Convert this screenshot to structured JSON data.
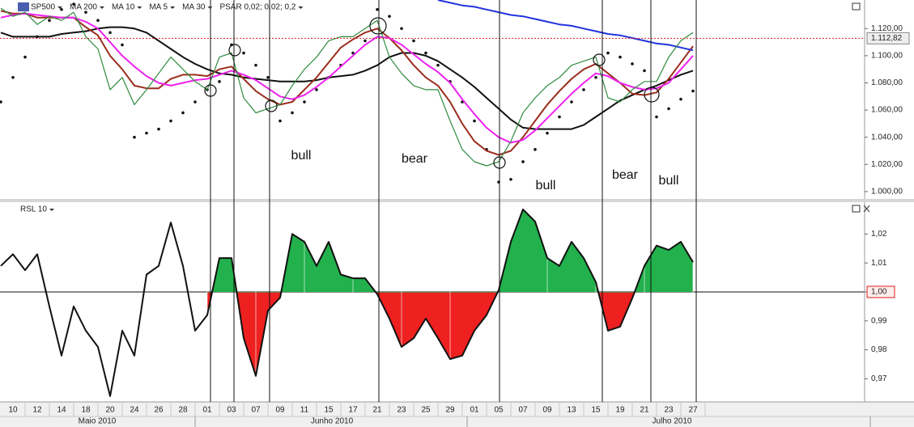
{
  "chart_data": [
    {
      "type": "line",
      "categories": [
        null,
        "10",
        null,
        "12",
        null,
        "14",
        null,
        "18",
        null,
        "20",
        null,
        "24",
        null,
        "26",
        null,
        "28",
        null,
        "01",
        null,
        "03",
        null,
        "07",
        null,
        "09",
        null,
        "11",
        null,
        "15",
        null,
        "17",
        null,
        "21",
        null,
        "23",
        null,
        "25",
        null,
        "29",
        null,
        "01",
        null,
        "05",
        null,
        "07",
        null,
        "09",
        null,
        "13",
        null,
        "15",
        null,
        "19",
        null,
        "21",
        null,
        "23",
        null,
        "27"
      ],
      "months": [
        "Maio 2010",
        "Junho 2010",
        "Julho 2010"
      ],
      "series": [
        {
          "name": "SP500",
          "color": "#2e8b3e",
          "values": [
            1135,
            1129,
            1132,
            1123,
            1129,
            1126,
            1132,
            1114,
            1105,
            1075,
            1084,
            1064,
            1075,
            1087,
            1099,
            1090,
            1081,
            1075,
            1099,
            1102,
            1069,
            1058,
            1061,
            1064,
            1078,
            1090,
            1099,
            1111,
            1114,
            1114,
            1120,
            1126,
            1099,
            1087,
            1078,
            1075,
            1075,
            1052,
            1031,
            1022,
            1019,
            1022,
            1037,
            1058,
            1069,
            1078,
            1084,
            1093,
            1096,
            1099,
            1069,
            1066,
            1075,
            1081,
            1081,
            1099,
            1111,
            1117
          ]
        },
        {
          "name": "MA 200",
          "color": "#2233dd",
          "values": [
            null,
            null,
            null,
            null,
            null,
            null,
            null,
            null,
            null,
            null,
            null,
            null,
            null,
            null,
            null,
            null,
            null,
            null,
            null,
            null,
            null,
            null,
            null,
            null,
            null,
            null,
            null,
            null,
            null,
            null,
            null,
            null,
            null,
            null,
            null,
            null,
            1141,
            1139,
            1137,
            1136,
            1134,
            1132,
            1130,
            1129,
            1127,
            1125,
            1123,
            1122,
            1120,
            1118,
            1116,
            1115,
            1113,
            1111,
            1109,
            1108,
            1106,
            1104
          ]
        },
        {
          "name": "MA 10",
          "color": "#ee22ee",
          "values": [
            1128,
            1130,
            1131,
            1130,
            1129,
            1128,
            1128,
            1125,
            1120,
            1110,
            1100,
            1092,
            1085,
            1080,
            1078,
            1080,
            1082,
            1083,
            1086,
            1089,
            1086,
            1082,
            1076,
            1070,
            1068,
            1071,
            1077,
            1084,
            1092,
            1100,
            1108,
            1114,
            1113,
            1108,
            1101,
            1094,
            1088,
            1080,
            1068,
            1057,
            1047,
            1040,
            1036,
            1038,
            1045,
            1054,
            1063,
            1072,
            1080,
            1087,
            1085,
            1080,
            1077,
            1075,
            1076,
            1080,
            1090,
            1100
          ]
        },
        {
          "name": "MA 5",
          "color": "#9b2d1e",
          "values": [
            1133,
            1131,
            1131,
            1128,
            1128,
            1128,
            1128,
            1121,
            1115,
            1100,
            1090,
            1078,
            1076,
            1076,
            1083,
            1086,
            1086,
            1085,
            1090,
            1092,
            1083,
            1074,
            1068,
            1064,
            1066,
            1075,
            1084,
            1095,
            1106,
            1112,
            1117,
            1120,
            1113,
            1104,
            1093,
            1084,
            1078,
            1066,
            1050,
            1037,
            1030,
            1027,
            1030,
            1040,
            1052,
            1064,
            1074,
            1083,
            1090,
            1094,
            1087,
            1080,
            1072,
            1071,
            1073,
            1083,
            1095,
            1107
          ]
        },
        {
          "name": "MA 30",
          "color": "#111111",
          "values": [
            1117,
            1114,
            1114,
            1114,
            1114,
            1116,
            1117,
            1118,
            1120,
            1121,
            1121,
            1120,
            1117,
            1111,
            1105,
            1099,
            1094,
            1090,
            1087,
            1086,
            1084,
            1083,
            1082,
            1081,
            1081,
            1081,
            1082,
            1084,
            1085,
            1086,
            1089,
            1093,
            1099,
            1102,
            1102,
            1100,
            1096,
            1090,
            1084,
            1077,
            1069,
            1061,
            1053,
            1047,
            1046,
            1046,
            1046,
            1046,
            1049,
            1055,
            1061,
            1067,
            1071,
            1075,
            1078,
            1082,
            1086,
            1089
          ]
        },
        {
          "name": "PSAR 0,02; 0,02; 0,2",
          "color": "#111111",
          "marker": "dots",
          "values": [
            1066,
            1084,
            1099,
            1114,
            1126,
            1134,
            1138,
            1132,
            1126,
            1117,
            1108,
            1040,
            1043,
            1046,
            1052,
            1058,
            1066,
            1075,
            1081,
            1108,
            1102,
            1093,
            1084,
            1052,
            1058,
            1066,
            1075,
            1084,
            1093,
            1102,
            1111,
            1134,
            1129,
            1120,
            1111,
            1102,
            1093,
            1081,
            1066,
            1052,
            1031,
            1007,
            1009,
            1022,
            1031,
            1043,
            1055,
            1066,
            1075,
            1084,
            1102,
            1099,
            1094,
            1089,
            1055,
            1061,
            1068,
            1074
          ]
        }
      ],
      "ylim": [
        994,
        1141
      ],
      "yticks": [
        {
          "value": 1000,
          "label": "1.000,00"
        },
        {
          "value": 1020,
          "label": "1.020,00"
        },
        {
          "value": 1040,
          "label": "1.040,00"
        },
        {
          "value": 1060,
          "label": "1.060,00"
        },
        {
          "value": 1080,
          "label": "1.080,00"
        },
        {
          "value": 1100,
          "label": "1.100,00"
        },
        {
          "value": 1120,
          "label": "1.120,00"
        }
      ],
      "last_price": {
        "value": 1112.82,
        "label": "1.112,82",
        "color": "#e02020"
      },
      "annotations": [
        "bull",
        "bear",
        "bull",
        "bear",
        "bull"
      ]
    },
    {
      "type": "line",
      "series": [
        {
          "name": "RSL 10",
          "color": "#111111",
          "values": [
            1.009,
            1.013,
            1.0075,
            1.013,
            0.995,
            0.978,
            0.995,
            0.9866,
            0.981,
            0.964,
            0.9866,
            0.978,
            1.006,
            1.009,
            1.024,
            1.009,
            0.9866,
            0.992,
            1.0117,
            1.0117,
            0.984,
            0.971,
            0.9936,
            0.998,
            1.02,
            1.0173,
            1.009,
            1.0173,
            1.006,
            1.0047,
            1.0047,
            0.9992,
            0.9908,
            0.981,
            0.984,
            0.9908,
            0.984,
            0.9768,
            0.978,
            0.9866,
            0.992,
            1.0006,
            1.0173,
            1.0285,
            1.0243,
            1.0117,
            1.009,
            1.0173,
            1.0117,
            1.0034,
            0.9866,
            0.988,
            0.9978,
            1.009,
            1.016,
            1.0145,
            1.0173,
            1.0103
          ]
        }
      ],
      "ylim": [
        0.962,
        1.031
      ],
      "yticks": [
        {
          "value": 0.97,
          "label": "0,97"
        },
        {
          "value": 0.98,
          "label": "0,98"
        },
        {
          "value": 0.99,
          "label": "0,99"
        },
        {
          "value": 1.0,
          "label": "1,00"
        },
        {
          "value": 1.01,
          "label": "1,01"
        },
        {
          "value": 1.02,
          "label": "1,02"
        }
      ],
      "baseline": 1.0,
      "fill_colors": [
        "#22b14c",
        "#ee2020"
      ]
    }
  ]
}
